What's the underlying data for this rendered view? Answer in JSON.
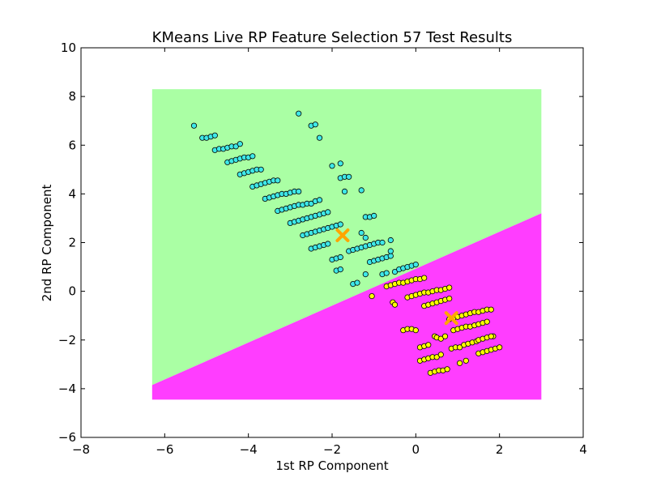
{
  "chart_data": {
    "type": "scatter",
    "title": "KMeans Live RP Feature Selection 57 Test Results",
    "xlabel": "1st RP Component",
    "ylabel": "2nd RP Component",
    "xlim": [
      -8,
      4
    ],
    "ylim": [
      -6,
      10
    ],
    "xticks": [
      -8,
      -6,
      -4,
      -2,
      0,
      2,
      4
    ],
    "yticks": [
      -6,
      -4,
      -2,
      0,
      2,
      4,
      6,
      8,
      10
    ],
    "grid": false,
    "legend": "none",
    "decision_regions": {
      "x_range": [
        -6.3,
        3.0
      ],
      "y_range": [
        -4.45,
        8.3
      ],
      "boundary_line": [
        [
          -6.3,
          -3.85
        ],
        [
          3.0,
          3.2
        ]
      ],
      "colors": {
        "above": "#aaffa4",
        "below": "#ff3dff"
      }
    },
    "series": [
      {
        "color": "#3ee8e8",
        "points": [
          [
            -5.3,
            6.8
          ],
          [
            -5.1,
            6.3
          ],
          [
            -5.0,
            6.3
          ],
          [
            -4.9,
            6.35
          ],
          [
            -4.8,
            6.4
          ],
          [
            -4.8,
            5.8
          ],
          [
            -4.7,
            5.85
          ],
          [
            -4.6,
            5.85
          ],
          [
            -4.5,
            5.9
          ],
          [
            -4.4,
            5.95
          ],
          [
            -4.3,
            5.95
          ],
          [
            -4.2,
            6.05
          ],
          [
            -4.5,
            5.3
          ],
          [
            -4.4,
            5.35
          ],
          [
            -4.3,
            5.4
          ],
          [
            -4.2,
            5.45
          ],
          [
            -4.1,
            5.5
          ],
          [
            -4.0,
            5.5
          ],
          [
            -3.9,
            5.55
          ],
          [
            -4.2,
            4.8
          ],
          [
            -4.1,
            4.85
          ],
          [
            -4.0,
            4.9
          ],
          [
            -3.9,
            4.95
          ],
          [
            -3.8,
            5.0
          ],
          [
            -3.7,
            5.0
          ],
          [
            -3.9,
            4.3
          ],
          [
            -3.8,
            4.35
          ],
          [
            -3.7,
            4.4
          ],
          [
            -3.6,
            4.45
          ],
          [
            -3.5,
            4.5
          ],
          [
            -3.4,
            4.55
          ],
          [
            -3.3,
            4.55
          ],
          [
            -3.6,
            3.8
          ],
          [
            -3.5,
            3.85
          ],
          [
            -3.4,
            3.9
          ],
          [
            -3.3,
            3.95
          ],
          [
            -3.2,
            4.0
          ],
          [
            -3.1,
            4.0
          ],
          [
            -3.0,
            4.05
          ],
          [
            -2.9,
            4.1
          ],
          [
            -2.8,
            4.1
          ],
          [
            -3.3,
            3.3
          ],
          [
            -3.2,
            3.35
          ],
          [
            -3.1,
            3.4
          ],
          [
            -3.0,
            3.45
          ],
          [
            -2.9,
            3.5
          ],
          [
            -2.8,
            3.55
          ],
          [
            -2.7,
            3.55
          ],
          [
            -2.6,
            3.6
          ],
          [
            -2.5,
            3.6
          ],
          [
            -2.4,
            3.7
          ],
          [
            -2.3,
            3.75
          ],
          [
            -3.0,
            2.8
          ],
          [
            -2.9,
            2.85
          ],
          [
            -2.8,
            2.9
          ],
          [
            -2.7,
            2.95
          ],
          [
            -2.6,
            3.0
          ],
          [
            -2.5,
            3.05
          ],
          [
            -2.4,
            3.1
          ],
          [
            -2.3,
            3.15
          ],
          [
            -2.2,
            3.2
          ],
          [
            -2.1,
            3.25
          ],
          [
            -2.7,
            2.3
          ],
          [
            -2.6,
            2.35
          ],
          [
            -2.5,
            2.4
          ],
          [
            -2.4,
            2.45
          ],
          [
            -2.3,
            2.5
          ],
          [
            -2.2,
            2.55
          ],
          [
            -2.1,
            2.6
          ],
          [
            -2.0,
            2.65
          ],
          [
            -1.9,
            2.7
          ],
          [
            -1.8,
            2.75
          ],
          [
            -2.5,
            1.75
          ],
          [
            -2.4,
            1.8
          ],
          [
            -2.3,
            1.85
          ],
          [
            -2.2,
            1.9
          ],
          [
            -2.1,
            1.95
          ],
          [
            -1.6,
            1.65
          ],
          [
            -1.5,
            1.7
          ],
          [
            -1.4,
            1.75
          ],
          [
            -1.3,
            1.8
          ],
          [
            -1.2,
            1.85
          ],
          [
            -1.1,
            1.9
          ],
          [
            -1.0,
            1.95
          ],
          [
            -0.9,
            2.0
          ],
          [
            -0.8,
            2.0
          ],
          [
            -0.6,
            2.1
          ],
          [
            -2.0,
            1.3
          ],
          [
            -1.9,
            1.35
          ],
          [
            -1.8,
            1.4
          ],
          [
            -1.1,
            1.2
          ],
          [
            -1.0,
            1.25
          ],
          [
            -0.9,
            1.3
          ],
          [
            -0.8,
            1.35
          ],
          [
            -0.7,
            1.4
          ],
          [
            -0.6,
            1.45
          ],
          [
            -1.9,
            0.85
          ],
          [
            -1.8,
            0.9
          ],
          [
            -0.5,
            0.8
          ],
          [
            -0.4,
            0.9
          ],
          [
            -0.3,
            0.95
          ],
          [
            -0.2,
            1.0
          ],
          [
            -0.1,
            1.05
          ],
          [
            0.0,
            1.1
          ],
          [
            -0.8,
            0.7
          ],
          [
            -0.7,
            0.75
          ],
          [
            -1.5,
            0.3
          ],
          [
            -1.4,
            0.35
          ],
          [
            -1.2,
            0.7
          ],
          [
            -2.8,
            7.3
          ],
          [
            -2.5,
            6.8
          ],
          [
            -2.4,
            6.85
          ],
          [
            -2.3,
            6.3
          ],
          [
            -2.0,
            5.15
          ],
          [
            -1.8,
            5.25
          ],
          [
            -1.8,
            4.65
          ],
          [
            -1.7,
            4.7
          ],
          [
            -1.6,
            4.7
          ],
          [
            -1.3,
            4.15
          ],
          [
            -1.7,
            4.1
          ],
          [
            -1.2,
            3.05
          ],
          [
            -1.1,
            3.05
          ],
          [
            -1.0,
            3.1
          ],
          [
            -1.3,
            2.4
          ],
          [
            -1.2,
            2.2
          ],
          [
            -0.6,
            1.65
          ]
        ]
      },
      {
        "color": "#ffff00",
        "points": [
          [
            -0.7,
            0.2
          ],
          [
            -0.6,
            0.25
          ],
          [
            -0.5,
            0.3
          ],
          [
            -0.4,
            0.35
          ],
          [
            -0.3,
            0.35
          ],
          [
            -0.2,
            0.4
          ],
          [
            -0.1,
            0.45
          ],
          [
            0.0,
            0.5
          ],
          [
            0.1,
            0.5
          ],
          [
            0.2,
            0.55
          ],
          [
            -0.55,
            -0.45
          ],
          [
            -0.5,
            -0.55
          ],
          [
            -1.05,
            -0.2
          ],
          [
            -0.2,
            -0.25
          ],
          [
            -0.1,
            -0.2
          ],
          [
            0.0,
            -0.15
          ],
          [
            0.1,
            -0.1
          ],
          [
            0.2,
            -0.05
          ],
          [
            0.3,
            -0.05
          ],
          [
            0.4,
            0.0
          ],
          [
            0.5,
            0.05
          ],
          [
            0.6,
            0.05
          ],
          [
            0.7,
            0.1
          ],
          [
            0.8,
            0.15
          ],
          [
            0.2,
            -0.6
          ],
          [
            0.3,
            -0.55
          ],
          [
            0.4,
            -0.5
          ],
          [
            0.5,
            -0.45
          ],
          [
            0.6,
            -0.4
          ],
          [
            0.7,
            -0.35
          ],
          [
            0.8,
            -0.3
          ],
          [
            0.8,
            -1.15
          ],
          [
            0.9,
            -1.1
          ],
          [
            1.0,
            -1.05
          ],
          [
            1.1,
            -1.0
          ],
          [
            1.2,
            -0.95
          ],
          [
            1.3,
            -0.9
          ],
          [
            1.4,
            -0.85
          ],
          [
            1.5,
            -0.85
          ],
          [
            1.6,
            -0.8
          ],
          [
            1.7,
            -0.75
          ],
          [
            1.8,
            -0.75
          ],
          [
            0.9,
            -1.6
          ],
          [
            1.0,
            -1.55
          ],
          [
            1.1,
            -1.5
          ],
          [
            1.2,
            -1.45
          ],
          [
            1.3,
            -1.45
          ],
          [
            1.4,
            -1.4
          ],
          [
            1.5,
            -1.35
          ],
          [
            1.6,
            -1.3
          ],
          [
            1.7,
            -1.25
          ],
          [
            1.85,
            -1.85
          ],
          [
            -0.3,
            -1.6
          ],
          [
            -0.2,
            -1.55
          ],
          [
            -0.1,
            -1.55
          ],
          [
            0.0,
            -1.6
          ],
          [
            0.85,
            -2.35
          ],
          [
            0.95,
            -2.3
          ],
          [
            1.05,
            -2.3
          ],
          [
            1.15,
            -2.2
          ],
          [
            1.25,
            -2.15
          ],
          [
            1.35,
            -2.1
          ],
          [
            1.45,
            -2.05
          ],
          [
            1.5,
            -2.0
          ],
          [
            1.6,
            -1.95
          ],
          [
            1.7,
            -1.9
          ],
          [
            1.8,
            -1.85
          ],
          [
            0.1,
            -2.3
          ],
          [
            0.2,
            -2.25
          ],
          [
            0.3,
            -2.2
          ],
          [
            0.45,
            -1.85
          ],
          [
            0.5,
            -1.9
          ],
          [
            0.6,
            -1.95
          ],
          [
            0.7,
            -1.85
          ],
          [
            0.1,
            -2.85
          ],
          [
            0.2,
            -2.8
          ],
          [
            0.3,
            -2.75
          ],
          [
            0.4,
            -2.7
          ],
          [
            0.5,
            -2.7
          ],
          [
            0.6,
            -2.6
          ],
          [
            1.5,
            -2.55
          ],
          [
            1.6,
            -2.5
          ],
          [
            1.7,
            -2.45
          ],
          [
            1.8,
            -2.4
          ],
          [
            1.9,
            -2.35
          ],
          [
            2.0,
            -2.3
          ],
          [
            0.35,
            -3.35
          ],
          [
            0.45,
            -3.3
          ],
          [
            0.55,
            -3.25
          ],
          [
            0.65,
            -3.25
          ],
          [
            0.75,
            -3.2
          ],
          [
            1.05,
            -2.95
          ],
          [
            1.2,
            -2.85
          ]
        ]
      }
    ],
    "centroids": {
      "color": "#ffa500",
      "marker": "x",
      "points": [
        [
          -1.75,
          2.3
        ],
        [
          0.85,
          -1.1
        ]
      ]
    }
  }
}
